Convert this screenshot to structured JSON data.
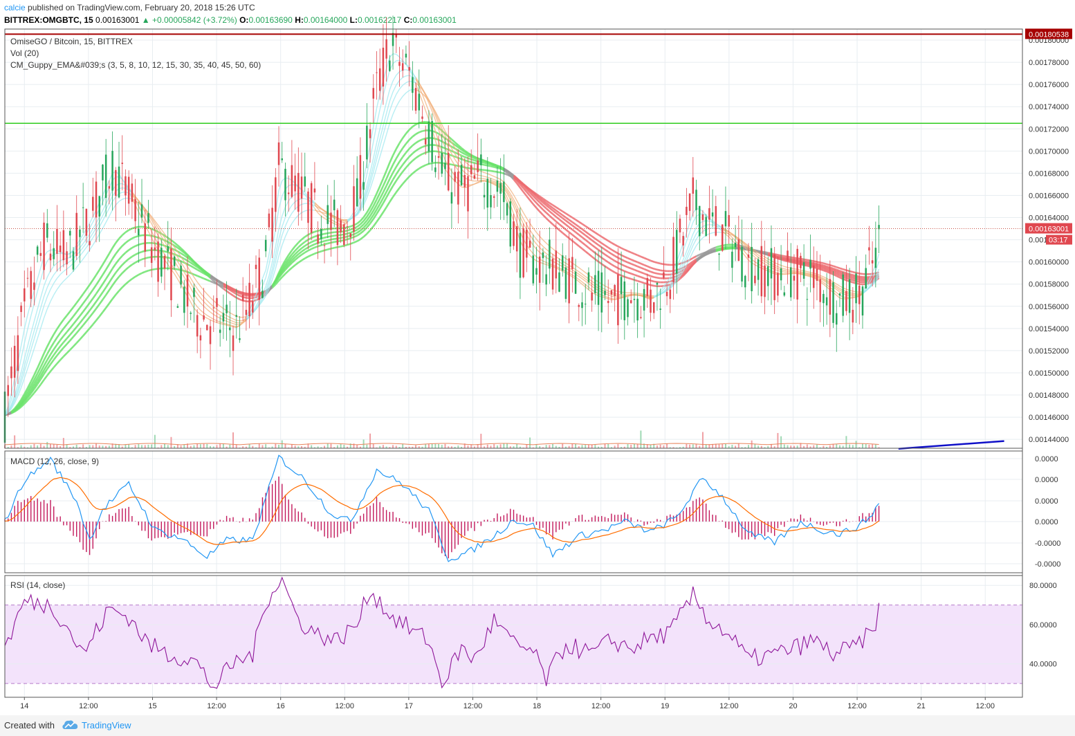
{
  "header": {
    "publisher": "calcie",
    "published_text": "published on TradingView.com, February 20, 2018 15:26 UTC",
    "symbol": "BITTREX:OMGBTC, 15",
    "last": "0.00163001",
    "change": "▲ +0.00005842 (+3.72%)",
    "o_label": "O:",
    "o": "0.00163690",
    "h_label": "H:",
    "h": "0.00164000",
    "l_label": "L:",
    "l": "0.00162217",
    "c_label": "C:",
    "c": "0.00163001"
  },
  "colors": {
    "up": "#26a65b",
    "down": "#e0474f",
    "grid": "#e8edf1",
    "resistance_line": "#a60000",
    "support_line": "#2ecc1d",
    "trend_line": "#1010c8",
    "macd_line": "#2196f3",
    "signal_line": "#ff6d00",
    "histogram": "#c2185b",
    "rsi_line": "#8e1599",
    "rsi_band": "#f3e3fb"
  },
  "footer": {
    "created_with": "Created with",
    "brand": "TradingView"
  },
  "chart_data": [
    {
      "type": "candlestick",
      "title": "OmiseGO / Bitcoin, 15, BITTREX",
      "indicators": [
        "Vol (20)",
        "CM_Guppy_EMA&#039;s (3, 5, 8, 10, 12, 15, 30, 35, 40, 45, 50, 60)"
      ],
      "x_ticks": [
        "14",
        "12:00",
        "15",
        "12:00",
        "16",
        "12:00",
        "17",
        "12:00",
        "18",
        "12:00",
        "19",
        "12:00",
        "20",
        "12:00",
        "21",
        "12:00"
      ],
      "y_ticks": [
        "0.00144000",
        "0.00146000",
        "0.00148000",
        "0.00150000",
        "0.00152000",
        "0.00154000",
        "0.00156000",
        "0.00158000",
        "0.00160000",
        "0.0016",
        "0.00164000",
        "0.00166000",
        "0.00168000",
        "0.00170000",
        "0.00172000",
        "0.00174000",
        "0.00176000",
        "0.00178000",
        "0.00180000"
      ],
      "ylim": [
        0.001432,
        0.00181
      ],
      "price_path": [
        [
          0,
          0.001462
        ],
        [
          1.5,
          0.001555
        ],
        [
          3,
          0.001615
        ],
        [
          4.8,
          0.001605
        ],
        [
          6.5,
          0.00164
        ],
        [
          8.3,
          0.001688
        ],
        [
          10,
          0.001645
        ],
        [
          11.5,
          0.00161
        ],
        [
          13,
          0.001585
        ],
        [
          14.5,
          0.001553
        ],
        [
          16,
          0.001545
        ],
        [
          17.8,
          0.00154
        ],
        [
          18.5,
          0.001555
        ],
        [
          20,
          0.0016
        ],
        [
          21,
          0.001685
        ],
        [
          22.5,
          0.001665
        ],
        [
          24,
          0.00164
        ],
        [
          25.8,
          0.00163
        ],
        [
          27,
          0.001655
        ],
        [
          28.5,
          0.001755
        ],
        [
          29.5,
          0.001795
        ],
        [
          31,
          0.00177
        ],
        [
          32.5,
          0.00172
        ],
        [
          33.5,
          0.00168
        ],
        [
          35,
          0.001665
        ],
        [
          36.5,
          0.001675
        ],
        [
          38,
          0.001665
        ],
        [
          39.5,
          0.00161
        ],
        [
          40.5,
          0.0016
        ],
        [
          42,
          0.001595
        ],
        [
          43.5,
          0.001585
        ],
        [
          45,
          0.00157
        ],
        [
          46.5,
          0.001565
        ],
        [
          48,
          0.001572
        ],
        [
          49.5,
          0.001565
        ],
        [
          51,
          0.00159
        ],
        [
          52.8,
          0.001655
        ],
        [
          54,
          0.001635
        ],
        [
          55.5,
          0.00162
        ],
        [
          57,
          0.001598
        ],
        [
          59,
          0.001588
        ],
        [
          60.5,
          0.00159
        ],
        [
          62,
          0.001585
        ],
        [
          64,
          0.001565
        ],
        [
          65.5,
          0.00157
        ],
        [
          66.8,
          0.001605
        ],
        [
          67.2,
          0.00163
        ]
      ],
      "last_price": "0.00163001",
      "countdown": "03:17",
      "resistance_level": 0.00180538,
      "resistance_label": "0.00180538",
      "support_level": 0.001725,
      "trend_line": [
        [
          68.5,
          0.0014315
        ],
        [
          76.6,
          0.0014385
        ]
      ]
    },
    {
      "type": "line",
      "title": "MACD (12, 26, close, 9)",
      "series": [
        "MACD",
        "Signal",
        "Histogram"
      ],
      "y_ticks": [
        "0.0000",
        "0.0000",
        "0.0000",
        "0.0000",
        "-0.0000",
        "-0.0000"
      ],
      "path": [
        [
          0,
          0.0
        ],
        [
          1.5,
          2.0
        ],
        [
          3.5,
          3.0
        ],
        [
          5.5,
          1.0
        ],
        [
          6.5,
          -0.9
        ],
        [
          7.5,
          0.6
        ],
        [
          9.5,
          1.8
        ],
        [
          11.5,
          -0.4
        ],
        [
          13.5,
          -0.8
        ],
        [
          15.5,
          -1.7
        ],
        [
          17,
          -0.9
        ],
        [
          19,
          -0.9
        ],
        [
          21,
          3.1
        ],
        [
          23,
          2.0
        ],
        [
          25,
          0.4
        ],
        [
          26.5,
          0.0
        ],
        [
          28.5,
          2.5
        ],
        [
          30.5,
          1.8
        ],
        [
          32.5,
          0.5
        ],
        [
          34,
          -1.8
        ],
        [
          35.5,
          -1.5
        ],
        [
          37.5,
          -0.7
        ],
        [
          39,
          0.1
        ],
        [
          40.5,
          -0.2
        ],
        [
          42,
          -1.6
        ],
        [
          44,
          -0.7
        ],
        [
          46,
          -0.4
        ],
        [
          47.5,
          0.0
        ],
        [
          49.5,
          -0.5
        ],
        [
          51.5,
          0.2
        ],
        [
          53.5,
          2.1
        ],
        [
          55,
          1.2
        ],
        [
          57,
          -0.6
        ],
        [
          59,
          -1.0
        ],
        [
          61,
          0.0
        ],
        [
          62.5,
          -0.4
        ],
        [
          64,
          -0.6
        ],
        [
          65.5,
          -0.2
        ],
        [
          66.6,
          0.4
        ],
        [
          67.2,
          1.3
        ]
      ]
    },
    {
      "type": "line",
      "title": "RSI (14, close)",
      "y_ticks": [
        "80.0000",
        "60.0000",
        "40.0000"
      ],
      "ylim": [
        23,
        85
      ],
      "band": [
        30,
        70
      ],
      "path": [
        [
          0,
          48
        ],
        [
          1.5,
          72
        ],
        [
          3.5,
          70
        ],
        [
          4.5,
          62
        ],
        [
          6,
          45
        ],
        [
          8,
          68
        ],
        [
          9.5,
          64
        ],
        [
          11,
          50
        ],
        [
          12.5,
          45
        ],
        [
          14.5,
          42
        ],
        [
          16,
          28
        ],
        [
          17.5,
          40
        ],
        [
          19,
          45
        ],
        [
          20,
          72
        ],
        [
          21.2,
          84
        ],
        [
          22.5,
          62
        ],
        [
          24,
          55
        ],
        [
          25.5,
          52
        ],
        [
          27,
          60
        ],
        [
          28,
          78
        ],
        [
          29.5,
          65
        ],
        [
          31,
          58
        ],
        [
          32.5,
          52
        ],
        [
          33.5,
          30
        ],
        [
          35,
          48
        ],
        [
          36,
          42
        ],
        [
          37.5,
          62
        ],
        [
          39,
          50
        ],
        [
          40.5,
          46
        ],
        [
          41.5,
          32
        ],
        [
          43,
          50
        ],
        [
          45,
          45
        ],
        [
          46.5,
          52
        ],
        [
          48,
          48
        ],
        [
          49.5,
          53
        ],
        [
          51,
          56
        ],
        [
          52.8,
          75
        ],
        [
          54,
          62
        ],
        [
          55.5,
          55
        ],
        [
          57,
          42
        ],
        [
          59,
          45
        ],
        [
          60.5,
          48
        ],
        [
          62,
          52
        ],
        [
          63.5,
          45
        ],
        [
          65,
          48
        ],
        [
          66.5,
          56
        ],
        [
          67.2,
          72
        ]
      ]
    }
  ]
}
